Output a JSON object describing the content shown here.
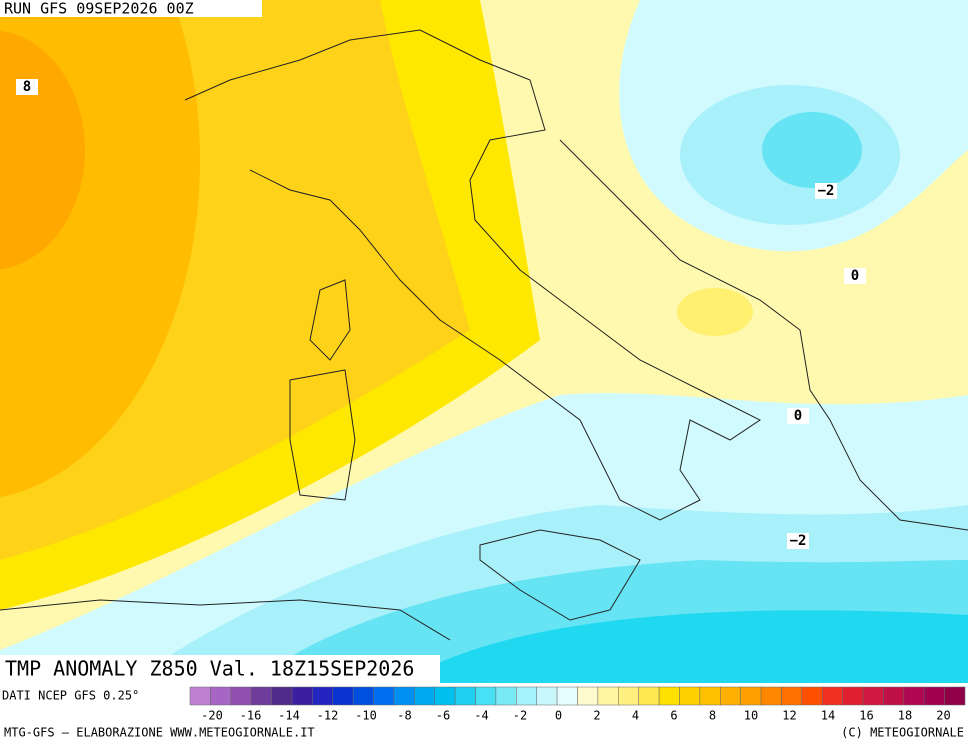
{
  "header": {
    "run": "RUN GFS 09SEP2026 00Z"
  },
  "map": {
    "title": "TMP ANOMALY Z850 Val. 18Z15SEP2026",
    "source": "DATI NCEP GFS 0.25°",
    "contour_labels": [
      "8",
      "−2",
      "0",
      "0",
      "−2"
    ]
  },
  "colorbar": {
    "ticks": [
      -20,
      -16,
      -14,
      -12,
      -10,
      -8,
      -6,
      -4,
      -2,
      0,
      2,
      4,
      6,
      8,
      10,
      12,
      14,
      16,
      18,
      20
    ],
    "colors": [
      "#c080d0",
      "#a866c4",
      "#9050b0",
      "#703c9c",
      "#502a8a",
      "#3a20a0",
      "#2424c0",
      "#0a34d0",
      "#0050e0",
      "#006ef0",
      "#0090f4",
      "#00a8f0",
      "#00c0f0",
      "#20d0f2",
      "#48e0f4",
      "#78eaf6",
      "#a4f2fa",
      "#c8f8fc",
      "#e6fdff",
      "#fffacd",
      "#fff5a0",
      "#fff080",
      "#ffe850",
      "#ffe000",
      "#ffd000",
      "#ffc000",
      "#ffb000",
      "#ffa000",
      "#ff8800",
      "#ff7000",
      "#ff5000",
      "#f03020",
      "#e02030",
      "#d01840",
      "#c01048",
      "#b00850",
      "#a00050",
      "#900048"
    ]
  },
  "footer": {
    "left": "MTG-GFS — ELABORAZIONE WWW.METEOGIORNALE.IT",
    "right": "(C) METEOGIORNALE"
  }
}
